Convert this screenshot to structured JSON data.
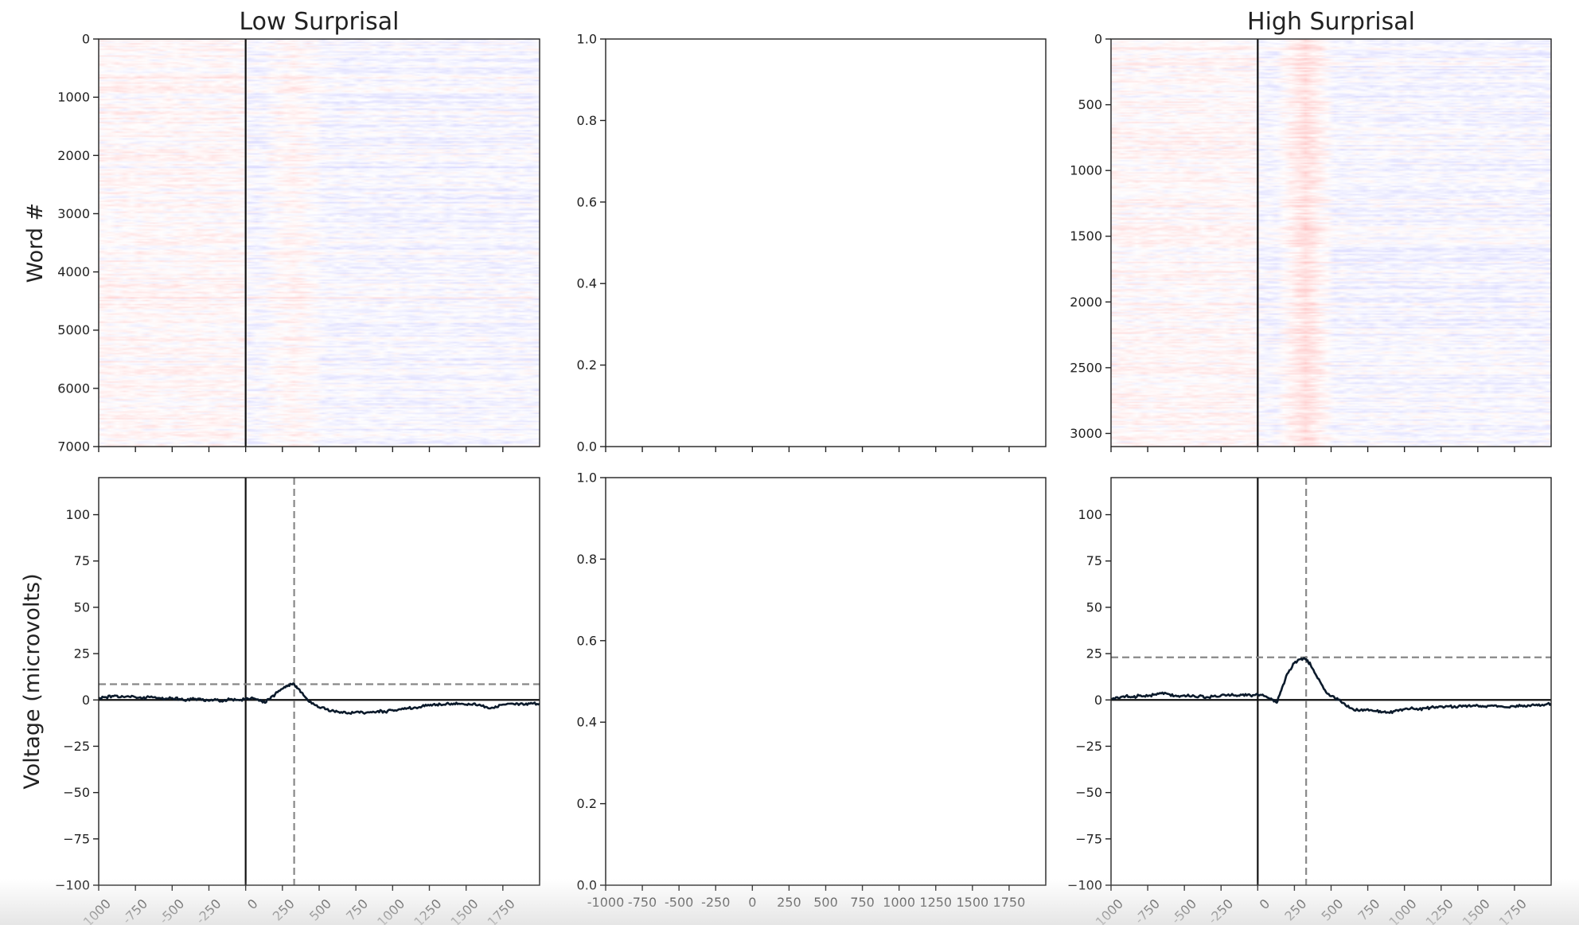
{
  "chart_data": [
    {
      "panel": "top-left",
      "type": "heatmap",
      "title": "Low Surprisal",
      "ylabel": "Word #",
      "xlabel": "",
      "xlim": [
        -1000,
        2000
      ],
      "ylim": [
        7000,
        0
      ],
      "xticks": [
        -1000,
        -750,
        -500,
        -250,
        0,
        250,
        500,
        750,
        1000,
        1250,
        1500,
        1750
      ],
      "xtick_labels_visible": false,
      "yticks": [
        0,
        1000,
        2000,
        3000,
        4000,
        5000,
        6000,
        7000
      ],
      "ytick_labels": [
        "0",
        "1000",
        "2000",
        "3000",
        "4000",
        "5000",
        "6000",
        "7000"
      ],
      "n_rows": 7050,
      "colormap": "bwr",
      "onset_line_x": 0,
      "positive_band_x": [
        150,
        500
      ],
      "positive_band_strength": 0.25
    },
    {
      "panel": "top-middle",
      "type": "line",
      "title": "",
      "empty": true,
      "xlim": [
        -1000,
        2000
      ],
      "xticks": [
        -1000,
        -750,
        -500,
        -250,
        0,
        250,
        500,
        750,
        1000,
        1250,
        1500,
        1750
      ],
      "xtick_labels_visible": false,
      "ylim": [
        0,
        1
      ],
      "yticks": [
        0.0,
        0.2,
        0.4,
        0.6,
        0.8,
        1.0
      ],
      "ytick_labels": [
        "0.0",
        "0.2",
        "0.4",
        "0.6",
        "0.8",
        "1.0"
      ]
    },
    {
      "panel": "top-right",
      "type": "heatmap",
      "title": "High Surprisal",
      "xlabel": "",
      "ylabel": "",
      "xlim": [
        -1000,
        2000
      ],
      "ylim": [
        3100,
        0
      ],
      "xticks": [
        -1000,
        -750,
        -500,
        -250,
        0,
        250,
        500,
        750,
        1000,
        1250,
        1500,
        1750
      ],
      "xtick_labels_visible": false,
      "yticks": [
        0,
        500,
        1000,
        1500,
        2000,
        2500,
        3000
      ],
      "ytick_labels": [
        "0",
        "500",
        "1000",
        "1500",
        "2000",
        "2500",
        "3000"
      ],
      "n_rows": 3090,
      "colormap": "bwr",
      "onset_line_x": 0,
      "positive_band_x": [
        150,
        500
      ],
      "positive_band_strength": 0.75
    },
    {
      "panel": "bottom-left",
      "type": "line",
      "ylabel": "Voltage (microvolts)",
      "xlabel": "",
      "xlim": [
        -1000,
        2000
      ],
      "ylim": [
        -100,
        120
      ],
      "xticks": [
        -1000,
        -750,
        -500,
        -250,
        0,
        250,
        500,
        750,
        1000,
        1250,
        1500,
        1750
      ],
      "xtick_labels": [
        "-1000",
        "-750",
        "-500",
        "-250",
        "0",
        "250",
        "500",
        "750",
        "1000",
        "1250",
        "1500",
        "1750"
      ],
      "xtick_rotation": -45,
      "yticks": [
        -100,
        -75,
        -50,
        -25,
        0,
        25,
        50,
        75,
        100
      ],
      "ytick_labels": [
        "−100",
        "−75",
        "−50",
        "−25",
        "0",
        "25",
        "50",
        "75",
        "100"
      ],
      "vline_solid_x": 0,
      "hline_solid_y": 0,
      "vline_dashed_x": 330,
      "hline_dashed_y": 8.5,
      "series": [
        {
          "color": "#0b1a2b",
          "x": [
            -1000,
            -950,
            -900,
            -850,
            -800,
            -750,
            -700,
            -650,
            -600,
            -550,
            -500,
            -450,
            -400,
            -350,
            -300,
            -250,
            -200,
            -150,
            -100,
            -50,
            0,
            50,
            100,
            130,
            160,
            200,
            250,
            290,
            330,
            360,
            400,
            450,
            500,
            550,
            600,
            650,
            700,
            750,
            800,
            850,
            900,
            950,
            1000,
            1050,
            1100,
            1150,
            1200,
            1250,
            1300,
            1350,
            1400,
            1450,
            1500,
            1550,
            1600,
            1650,
            1700,
            1750,
            1800,
            1850,
            1900,
            1950,
            2000
          ],
          "y": [
            1,
            1.5,
            2,
            1.5,
            2,
            1.5,
            1,
            1.5,
            1,
            0.5,
            1,
            0.5,
            0,
            0.5,
            0,
            -0.5,
            0,
            -0.5,
            0.5,
            0,
            0.5,
            1,
            0,
            -1.5,
            0.5,
            3,
            6,
            8,
            8.5,
            6,
            2,
            -2,
            -4,
            -5,
            -6,
            -6.5,
            -7,
            -6.5,
            -7,
            -6.5,
            -6,
            -6.5,
            -5.5,
            -5,
            -4.5,
            -4,
            -3.5,
            -3,
            -2.5,
            -2.5,
            -2,
            -2,
            -2.5,
            -2,
            -3,
            -4.5,
            -3.5,
            -2.5,
            -2,
            -2,
            -2.5,
            -2,
            -2
          ]
        }
      ]
    },
    {
      "panel": "bottom-middle",
      "type": "line",
      "empty": true,
      "xlim": [
        -1000,
        2000
      ],
      "xticks": [
        -1000,
        -750,
        -500,
        -250,
        0,
        250,
        500,
        750,
        1000,
        1250,
        1500,
        1750
      ],
      "xtick_labels": [
        "-1000",
        "-750",
        "-500",
        "-250",
        "0",
        "250",
        "500",
        "750",
        "1000",
        "1250",
        "1500",
        "1750"
      ],
      "xtick_rotation": 0,
      "ylim": [
        0,
        1
      ],
      "yticks": [
        0.0,
        0.2,
        0.4,
        0.6,
        0.8,
        1.0
      ],
      "ytick_labels": [
        "0.0",
        "0.2",
        "0.4",
        "0.6",
        "0.8",
        "1.0"
      ]
    },
    {
      "panel": "bottom-right",
      "type": "line",
      "xlabel": "",
      "ylabel": "",
      "xlim": [
        -1000,
        2000
      ],
      "ylim": [
        -100,
        120
      ],
      "xticks": [
        -1000,
        -750,
        -500,
        -250,
        0,
        250,
        500,
        750,
        1000,
        1250,
        1500,
        1750
      ],
      "xtick_labels": [
        "-1000",
        "-750",
        "-500",
        "-250",
        "0",
        "250",
        "500",
        "750",
        "1000",
        "1250",
        "1500",
        "1750"
      ],
      "xtick_rotation": -45,
      "yticks": [
        -100,
        -75,
        -50,
        -25,
        0,
        25,
        50,
        75,
        100
      ],
      "ytick_labels": [
        "−100",
        "−75",
        "−50",
        "−25",
        "0",
        "25",
        "50",
        "75",
        "100"
      ],
      "vline_solid_x": 0,
      "hline_solid_y": 0,
      "vline_dashed_x": 330,
      "hline_dashed_y": 23,
      "series": [
        {
          "color": "#0b1a2b",
          "x": [
            -1000,
            -950,
            -900,
            -850,
            -800,
            -750,
            -700,
            -650,
            -600,
            -550,
            -500,
            -450,
            -400,
            -350,
            -300,
            -250,
            -200,
            -150,
            -100,
            -50,
            0,
            50,
            100,
            130,
            160,
            200,
            250,
            290,
            330,
            360,
            400,
            450,
            500,
            550,
            600,
            650,
            700,
            750,
            800,
            850,
            900,
            950,
            1000,
            1050,
            1100,
            1150,
            1200,
            1250,
            1300,
            1350,
            1400,
            1450,
            1500,
            1550,
            1600,
            1650,
            1700,
            1750,
            1800,
            1850,
            1900,
            1950,
            2000
          ],
          "y": [
            0.5,
            1,
            2,
            1.5,
            2.5,
            2,
            3,
            4,
            3,
            2,
            2.5,
            2,
            2,
            1.5,
            2,
            2.5,
            3,
            2.5,
            3,
            2.5,
            3,
            2,
            0,
            -1.5,
            5,
            14,
            20,
            22,
            22,
            19,
            13,
            6,
            2,
            0,
            -3,
            -5,
            -5.5,
            -5,
            -6,
            -6.5,
            -7,
            -5.5,
            -5,
            -4,
            -5,
            -4.5,
            -4,
            -3.5,
            -3.5,
            -4,
            -3,
            -3.5,
            -3,
            -3.5,
            -3,
            -3.5,
            -4,
            -3.5,
            -3,
            -3,
            -2.5,
            -3,
            -2
          ]
        }
      ]
    }
  ]
}
